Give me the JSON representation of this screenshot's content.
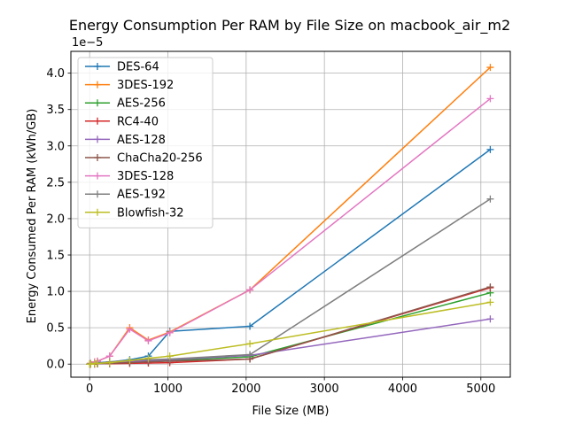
{
  "chart_data": {
    "type": "line",
    "title": "Energy Consumption Per RAM by File Size on macbook_air_m2",
    "xlabel": "File Size (MB)",
    "ylabel": "Energy Consumed Per RAM (kWh/GB)",
    "y_multiplier_label": "1e−5",
    "xlim": [
      -240,
      5376
    ],
    "ylim": [
      -1.8,
      43
    ],
    "x_ticks": [
      0,
      1000,
      2000,
      3000,
      4000,
      5000
    ],
    "y_ticks": [
      0.0,
      5.0,
      10.0,
      15.0,
      20.0,
      25.0,
      30.0,
      35.0,
      40.0
    ],
    "y_tick_labels": [
      "0.0",
      "0.5",
      "1.0",
      "1.5",
      "2.0",
      "2.5",
      "3.0",
      "3.5",
      "4.0"
    ],
    "grid": true,
    "legend_position": "upper left",
    "marker": "plus",
    "x": [
      1,
      10,
      64,
      100,
      256,
      512,
      750,
      1024,
      2048,
      5120
    ],
    "series": [
      {
        "name": "DES-64",
        "color": "#1f77b4",
        "values": [
          0.0,
          0.05,
          0.1,
          0.2,
          0.3,
          0.6,
          1.1,
          4.5,
          5.2,
          29.5
        ]
      },
      {
        "name": "3DES-192",
        "color": "#ff7f0e",
        "values": [
          0.0,
          0.1,
          0.3,
          0.4,
          1.1,
          5.0,
          3.3,
          4.4,
          10.2,
          40.8
        ]
      },
      {
        "name": "AES-256",
        "color": "#2ca02c",
        "values": [
          0.0,
          0.0,
          0.05,
          0.05,
          0.1,
          0.3,
          0.4,
          0.5,
          1.0,
          9.8
        ]
      },
      {
        "name": "RC4-40",
        "color": "#d62728",
        "values": [
          0.0,
          0.0,
          0.0,
          0.05,
          0.05,
          0.1,
          0.15,
          0.2,
          0.7,
          10.5
        ]
      },
      {
        "name": "AES-128",
        "color": "#9467bd",
        "values": [
          0.0,
          0.0,
          0.05,
          0.05,
          0.1,
          0.3,
          0.5,
          0.6,
          1.2,
          6.2
        ]
      },
      {
        "name": "ChaCha20-256",
        "color": "#8c564b",
        "values": [
          0.0,
          0.0,
          0.05,
          0.05,
          0.1,
          0.2,
          0.3,
          0.4,
          0.7,
          10.6
        ]
      },
      {
        "name": "3DES-128",
        "color": "#e377c2",
        "values": [
          0.0,
          0.1,
          0.3,
          0.4,
          1.1,
          4.8,
          3.2,
          4.3,
          10.2,
          36.5
        ]
      },
      {
        "name": "AES-192",
        "color": "#7f7f7f",
        "values": [
          0.0,
          0.05,
          0.1,
          0.1,
          0.3,
          0.5,
          0.6,
          0.7,
          1.3,
          22.7
        ]
      },
      {
        "name": "Blowfish-32",
        "color": "#bcbd22",
        "values": [
          0.0,
          0.0,
          0.1,
          0.1,
          0.2,
          0.5,
          0.8,
          1.1,
          2.8,
          8.5
        ]
      }
    ]
  }
}
